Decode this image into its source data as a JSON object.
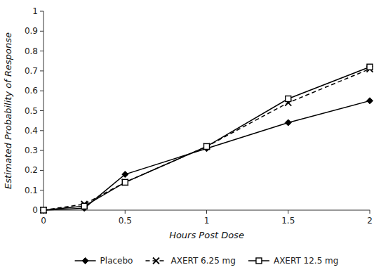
{
  "chart_data": {
    "type": "line",
    "x": [
      0,
      0.25,
      0.5,
      1.0,
      1.5,
      2.0
    ],
    "series": [
      {
        "name": "Placebo",
        "color": "#000000",
        "marker": "diamond",
        "line_style": "solid",
        "values": [
          0.0,
          0.01,
          0.18,
          0.31,
          0.44,
          0.55
        ]
      },
      {
        "name": "AXERT 6.25 mg",
        "color": "#000000",
        "marker": "x",
        "line_style": "dashed",
        "values": [
          0.0,
          0.03,
          0.14,
          0.32,
          0.54,
          0.71
        ]
      },
      {
        "name": "AXERT 12.5 mg",
        "color": "#000000",
        "marker": "square",
        "line_style": "solid",
        "values": [
          0.0,
          0.02,
          0.14,
          0.32,
          0.56,
          0.72
        ]
      }
    ],
    "x_label": "Hours Post Dose",
    "y_label": "Estimated Probability of Response",
    "xlim": [
      0,
      2.0
    ],
    "xticks": [
      0,
      0.5,
      1,
      1.5,
      2
    ],
    "ylim": [
      0,
      1.0
    ],
    "yticks": [
      0,
      0.1,
      0.2,
      0.3,
      0.4,
      0.5,
      0.6,
      0.7,
      0.8,
      0.9,
      1
    ],
    "grid": false,
    "legend": "bottom"
  }
}
